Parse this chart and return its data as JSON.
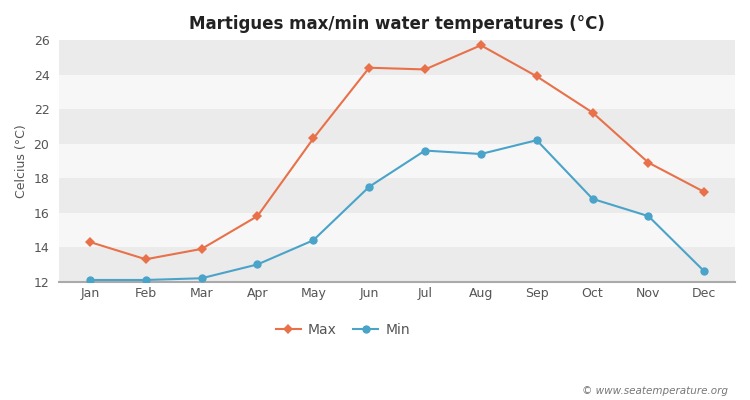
{
  "title": "Martigues max/min water temperatures (°C)",
  "ylabel": "Celcius (°C)",
  "months": [
    "Jan",
    "Feb",
    "Mar",
    "Apr",
    "May",
    "Jun",
    "Jul",
    "Aug",
    "Sep",
    "Oct",
    "Nov",
    "Dec"
  ],
  "max_values": [
    14.3,
    13.3,
    13.9,
    15.8,
    20.3,
    24.4,
    24.3,
    25.7,
    23.9,
    21.8,
    18.9,
    17.2
  ],
  "min_values": [
    12.1,
    12.1,
    12.2,
    13.0,
    14.4,
    17.5,
    19.6,
    19.4,
    20.2,
    16.8,
    15.8,
    12.6
  ],
  "max_color": "#e8714a",
  "min_color": "#4aa3c8",
  "figure_bg": "#ffffff",
  "plot_bg_light": "#f0f0f0",
  "plot_bg_dark": "#e0e0e0",
  "band_color_1": "#ebebeb",
  "band_color_2": "#f7f7f7",
  "ylim": [
    12,
    26
  ],
  "yticks": [
    12,
    14,
    16,
    18,
    20,
    22,
    24,
    26
  ],
  "watermark": "© www.seatemperature.org",
  "legend_labels": [
    "Max",
    "Min"
  ],
  "linewidth": 1.5
}
